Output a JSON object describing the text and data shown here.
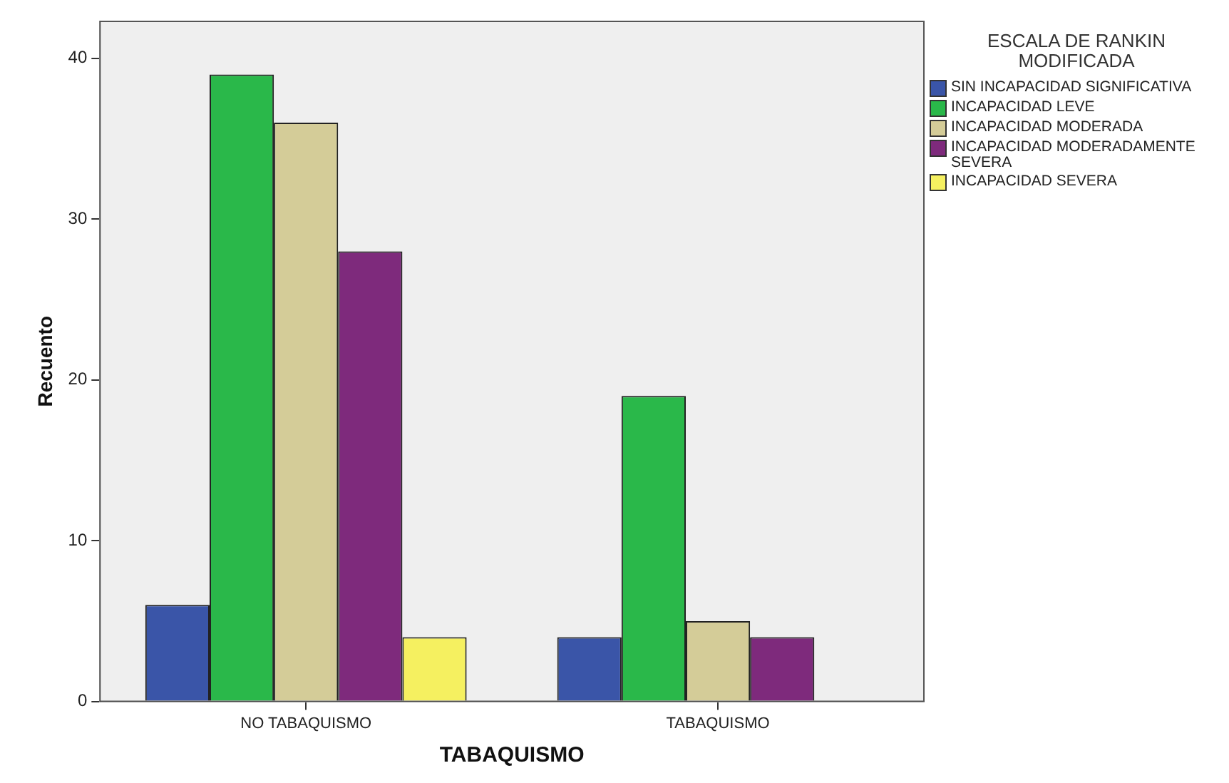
{
  "chart_data": {
    "type": "bar",
    "xlabel": "TABAQUISMO",
    "ylabel": "Recuento",
    "legend_title": "ESCALA DE RANKIN MODIFICADA",
    "legend": "right",
    "categories": [
      "NO TABAQUISMO",
      "TABAQUISMO"
    ],
    "series": [
      {
        "name": "SIN INCAPACIDAD SIGNIFICATIVA",
        "color": "#3a55a8",
        "values": [
          6,
          4
        ]
      },
      {
        "name": "INCAPACIDAD LEVE",
        "color": "#2ab84a",
        "values": [
          39,
          19
        ]
      },
      {
        "name": "INCAPACIDAD MODERADA",
        "color": "#d4cc98",
        "values": [
          36,
          5
        ]
      },
      {
        "name": "INCAPACIDAD MODERADAMENTE SEVERA",
        "color": "#7e2a7c",
        "values": [
          28,
          4
        ]
      },
      {
        "name": "INCAPACIDAD SEVERA",
        "color": "#f5f060",
        "values": [
          4,
          null
        ]
      }
    ],
    "ylim": [
      0,
      42.3
    ],
    "yticks": [
      0,
      10,
      20,
      30,
      40
    ],
    "grid": false
  }
}
